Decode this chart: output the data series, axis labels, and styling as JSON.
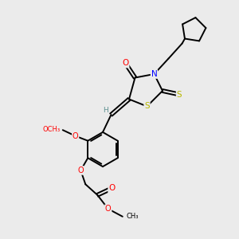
{
  "bg_color": "#ebebeb",
  "atom_colors": {
    "C": "#000000",
    "H": "#5c9090",
    "N": "#0000ff",
    "O": "#ff0000",
    "S": "#b8b800"
  },
  "bond_color": "#000000",
  "bond_width": 1.4,
  "figsize": [
    3.0,
    3.0
  ],
  "dpi": 100
}
